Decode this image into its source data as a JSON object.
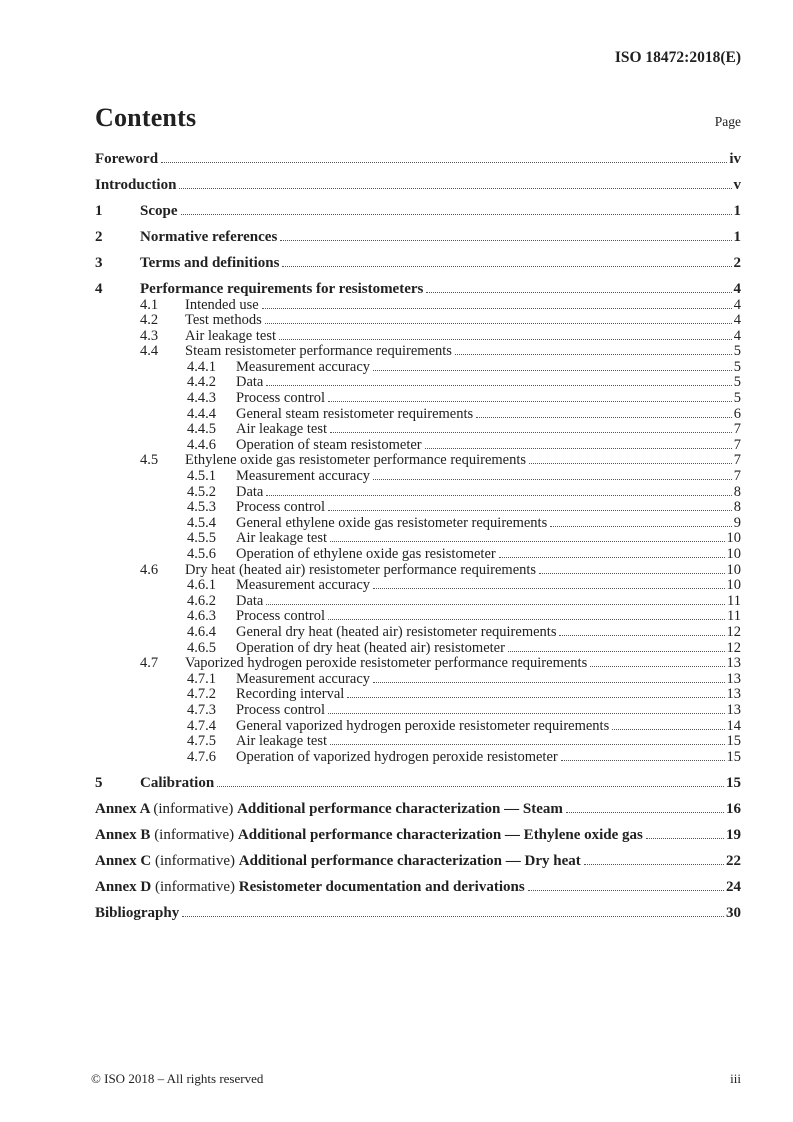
{
  "header": {
    "doc_ref": "ISO 18472:2018(E)"
  },
  "contents_header": {
    "title": "Contents",
    "page_label": "Page"
  },
  "toc": {
    "entries": [
      {
        "level": 0,
        "num": "",
        "parts": [
          {
            "t": "Foreword",
            "b": true
          }
        ],
        "page": "iv",
        "bold": true
      },
      {
        "level": 0,
        "num": "",
        "parts": [
          {
            "t": "Introduction",
            "b": true
          }
        ],
        "page": "v",
        "bold": true
      },
      {
        "level": 0,
        "num": "1",
        "parts": [
          {
            "t": "Scope",
            "b": true
          }
        ],
        "page": "1",
        "bold": true
      },
      {
        "level": 0,
        "num": "2",
        "parts": [
          {
            "t": "Normative references",
            "b": true
          }
        ],
        "page": "1",
        "bold": true
      },
      {
        "level": 0,
        "num": "3",
        "parts": [
          {
            "t": "Terms and definitions",
            "b": true
          }
        ],
        "page": "2",
        "bold": true
      },
      {
        "level": 0,
        "num": "4",
        "parts": [
          {
            "t": "Performance requirements for resistometers",
            "b": true
          }
        ],
        "page": "4",
        "bold": true
      },
      {
        "level": 1,
        "num": "4.1",
        "parts": [
          {
            "t": "Intended use",
            "b": false
          }
        ],
        "page": "4",
        "bold": false
      },
      {
        "level": 1,
        "num": "4.2",
        "parts": [
          {
            "t": "Test methods",
            "b": false
          }
        ],
        "page": "4",
        "bold": false
      },
      {
        "level": 1,
        "num": "4.3",
        "parts": [
          {
            "t": "Air leakage test",
            "b": false
          }
        ],
        "page": "4",
        "bold": false
      },
      {
        "level": 1,
        "num": "4.4",
        "parts": [
          {
            "t": "Steam resistometer performance requirements",
            "b": false
          }
        ],
        "page": "5",
        "bold": false
      },
      {
        "level": 2,
        "num": "4.4.1",
        "parts": [
          {
            "t": "Measurement accuracy",
            "b": false
          }
        ],
        "page": "5",
        "bold": false
      },
      {
        "level": 2,
        "num": "4.4.2",
        "parts": [
          {
            "t": "Data",
            "b": false
          }
        ],
        "page": "5",
        "bold": false
      },
      {
        "level": 2,
        "num": "4.4.3",
        "parts": [
          {
            "t": "Process control",
            "b": false
          }
        ],
        "page": "5",
        "bold": false
      },
      {
        "level": 2,
        "num": "4.4.4",
        "parts": [
          {
            "t": "General steam resistometer requirements",
            "b": false
          }
        ],
        "page": "6",
        "bold": false
      },
      {
        "level": 2,
        "num": "4.4.5",
        "parts": [
          {
            "t": "Air leakage test",
            "b": false
          }
        ],
        "page": "7",
        "bold": false
      },
      {
        "level": 2,
        "num": "4.4.6",
        "parts": [
          {
            "t": "Operation of steam resistometer",
            "b": false
          }
        ],
        "page": "7",
        "bold": false
      },
      {
        "level": 1,
        "num": "4.5",
        "parts": [
          {
            "t": "Ethylene oxide gas resistometer performance requirements",
            "b": false
          }
        ],
        "page": "7",
        "bold": false
      },
      {
        "level": 2,
        "num": "4.5.1",
        "parts": [
          {
            "t": "Measurement accuracy",
            "b": false
          }
        ],
        "page": "7",
        "bold": false
      },
      {
        "level": 2,
        "num": "4.5.2",
        "parts": [
          {
            "t": "Data",
            "b": false
          }
        ],
        "page": "8",
        "bold": false
      },
      {
        "level": 2,
        "num": "4.5.3",
        "parts": [
          {
            "t": "Process control",
            "b": false
          }
        ],
        "page": "8",
        "bold": false
      },
      {
        "level": 2,
        "num": "4.5.4",
        "parts": [
          {
            "t": "General ethylene oxide gas resistometer requirements",
            "b": false
          }
        ],
        "page": "9",
        "bold": false
      },
      {
        "level": 2,
        "num": "4.5.5",
        "parts": [
          {
            "t": "Air leakage test",
            "b": false
          }
        ],
        "page": "10",
        "bold": false
      },
      {
        "level": 2,
        "num": "4.5.6",
        "parts": [
          {
            "t": "Operation of ethylene oxide gas resistometer",
            "b": false
          }
        ],
        "page": "10",
        "bold": false
      },
      {
        "level": 1,
        "num": "4.6",
        "parts": [
          {
            "t": "Dry heat (heated air) resistometer performance requirements",
            "b": false
          }
        ],
        "page": "10",
        "bold": false
      },
      {
        "level": 2,
        "num": "4.6.1",
        "parts": [
          {
            "t": "Measurement accuracy",
            "b": false
          }
        ],
        "page": "10",
        "bold": false
      },
      {
        "level": 2,
        "num": "4.6.2",
        "parts": [
          {
            "t": "Data",
            "b": false
          }
        ],
        "page": "11",
        "bold": false
      },
      {
        "level": 2,
        "num": "4.6.3",
        "parts": [
          {
            "t": "Process control",
            "b": false
          }
        ],
        "page": "11",
        "bold": false
      },
      {
        "level": 2,
        "num": "4.6.4",
        "parts": [
          {
            "t": "General dry heat (heated air) resistometer requirements",
            "b": false
          }
        ],
        "page": "12",
        "bold": false
      },
      {
        "level": 2,
        "num": "4.6.5",
        "parts": [
          {
            "t": "Operation of dry heat (heated air) resistometer",
            "b": false
          }
        ],
        "page": "12",
        "bold": false
      },
      {
        "level": 1,
        "num": "4.7",
        "parts": [
          {
            "t": "Vaporized hydrogen peroxide resistometer performance requirements",
            "b": false
          }
        ],
        "page": "13",
        "bold": false
      },
      {
        "level": 2,
        "num": "4.7.1",
        "parts": [
          {
            "t": "Measurement accuracy",
            "b": false
          }
        ],
        "page": "13",
        "bold": false
      },
      {
        "level": 2,
        "num": "4.7.2",
        "parts": [
          {
            "t": "Recording interval",
            "b": false
          }
        ],
        "page": "13",
        "bold": false
      },
      {
        "level": 2,
        "num": "4.7.3",
        "parts": [
          {
            "t": "Process control",
            "b": false
          }
        ],
        "page": "13",
        "bold": false
      },
      {
        "level": 2,
        "num": "4.7.4",
        "parts": [
          {
            "t": "General vaporized hydrogen peroxide resistometer requirements",
            "b": false
          }
        ],
        "page": "14",
        "bold": false
      },
      {
        "level": 2,
        "num": "4.7.5",
        "parts": [
          {
            "t": "Air leakage test",
            "b": false
          }
        ],
        "page": "15",
        "bold": false
      },
      {
        "level": 2,
        "num": "4.7.6",
        "parts": [
          {
            "t": "Operation of vaporized hydrogen peroxide resistometer",
            "b": false
          }
        ],
        "page": "15",
        "bold": false
      },
      {
        "level": 0,
        "num": "5",
        "parts": [
          {
            "t": "Calibration",
            "b": true
          }
        ],
        "page": "15",
        "bold": true
      },
      {
        "level": 0,
        "num": "",
        "parts": [
          {
            "t": "Annex A ",
            "b": true
          },
          {
            "t": "(informative) ",
            "b": false
          },
          {
            "t": "Additional performance characterization — Steam",
            "b": true
          }
        ],
        "page": "16",
        "bold": true
      },
      {
        "level": 0,
        "num": "",
        "parts": [
          {
            "t": "Annex B ",
            "b": true
          },
          {
            "t": "(informative) ",
            "b": false
          },
          {
            "t": "Additional performance characterization — Ethylene oxide gas",
            "b": true
          }
        ],
        "page": "19",
        "bold": true
      },
      {
        "level": 0,
        "num": "",
        "parts": [
          {
            "t": "Annex C ",
            "b": true
          },
          {
            "t": "(informative) ",
            "b": false
          },
          {
            "t": "Additional performance characterization — Dry heat",
            "b": true
          }
        ],
        "page": "22",
        "bold": true
      },
      {
        "level": 0,
        "num": "",
        "parts": [
          {
            "t": "Annex D ",
            "b": true
          },
          {
            "t": "(informative) ",
            "b": false
          },
          {
            "t": "Resistometer documentation and derivations",
            "b": true
          }
        ],
        "page": "24",
        "bold": true
      },
      {
        "level": 0,
        "num": "",
        "parts": [
          {
            "t": "Bibliography",
            "b": true
          }
        ],
        "page": "30",
        "bold": true
      }
    ]
  },
  "footer": {
    "copyright": "© ISO 2018 – All rights reserved",
    "page_number": "iii"
  }
}
